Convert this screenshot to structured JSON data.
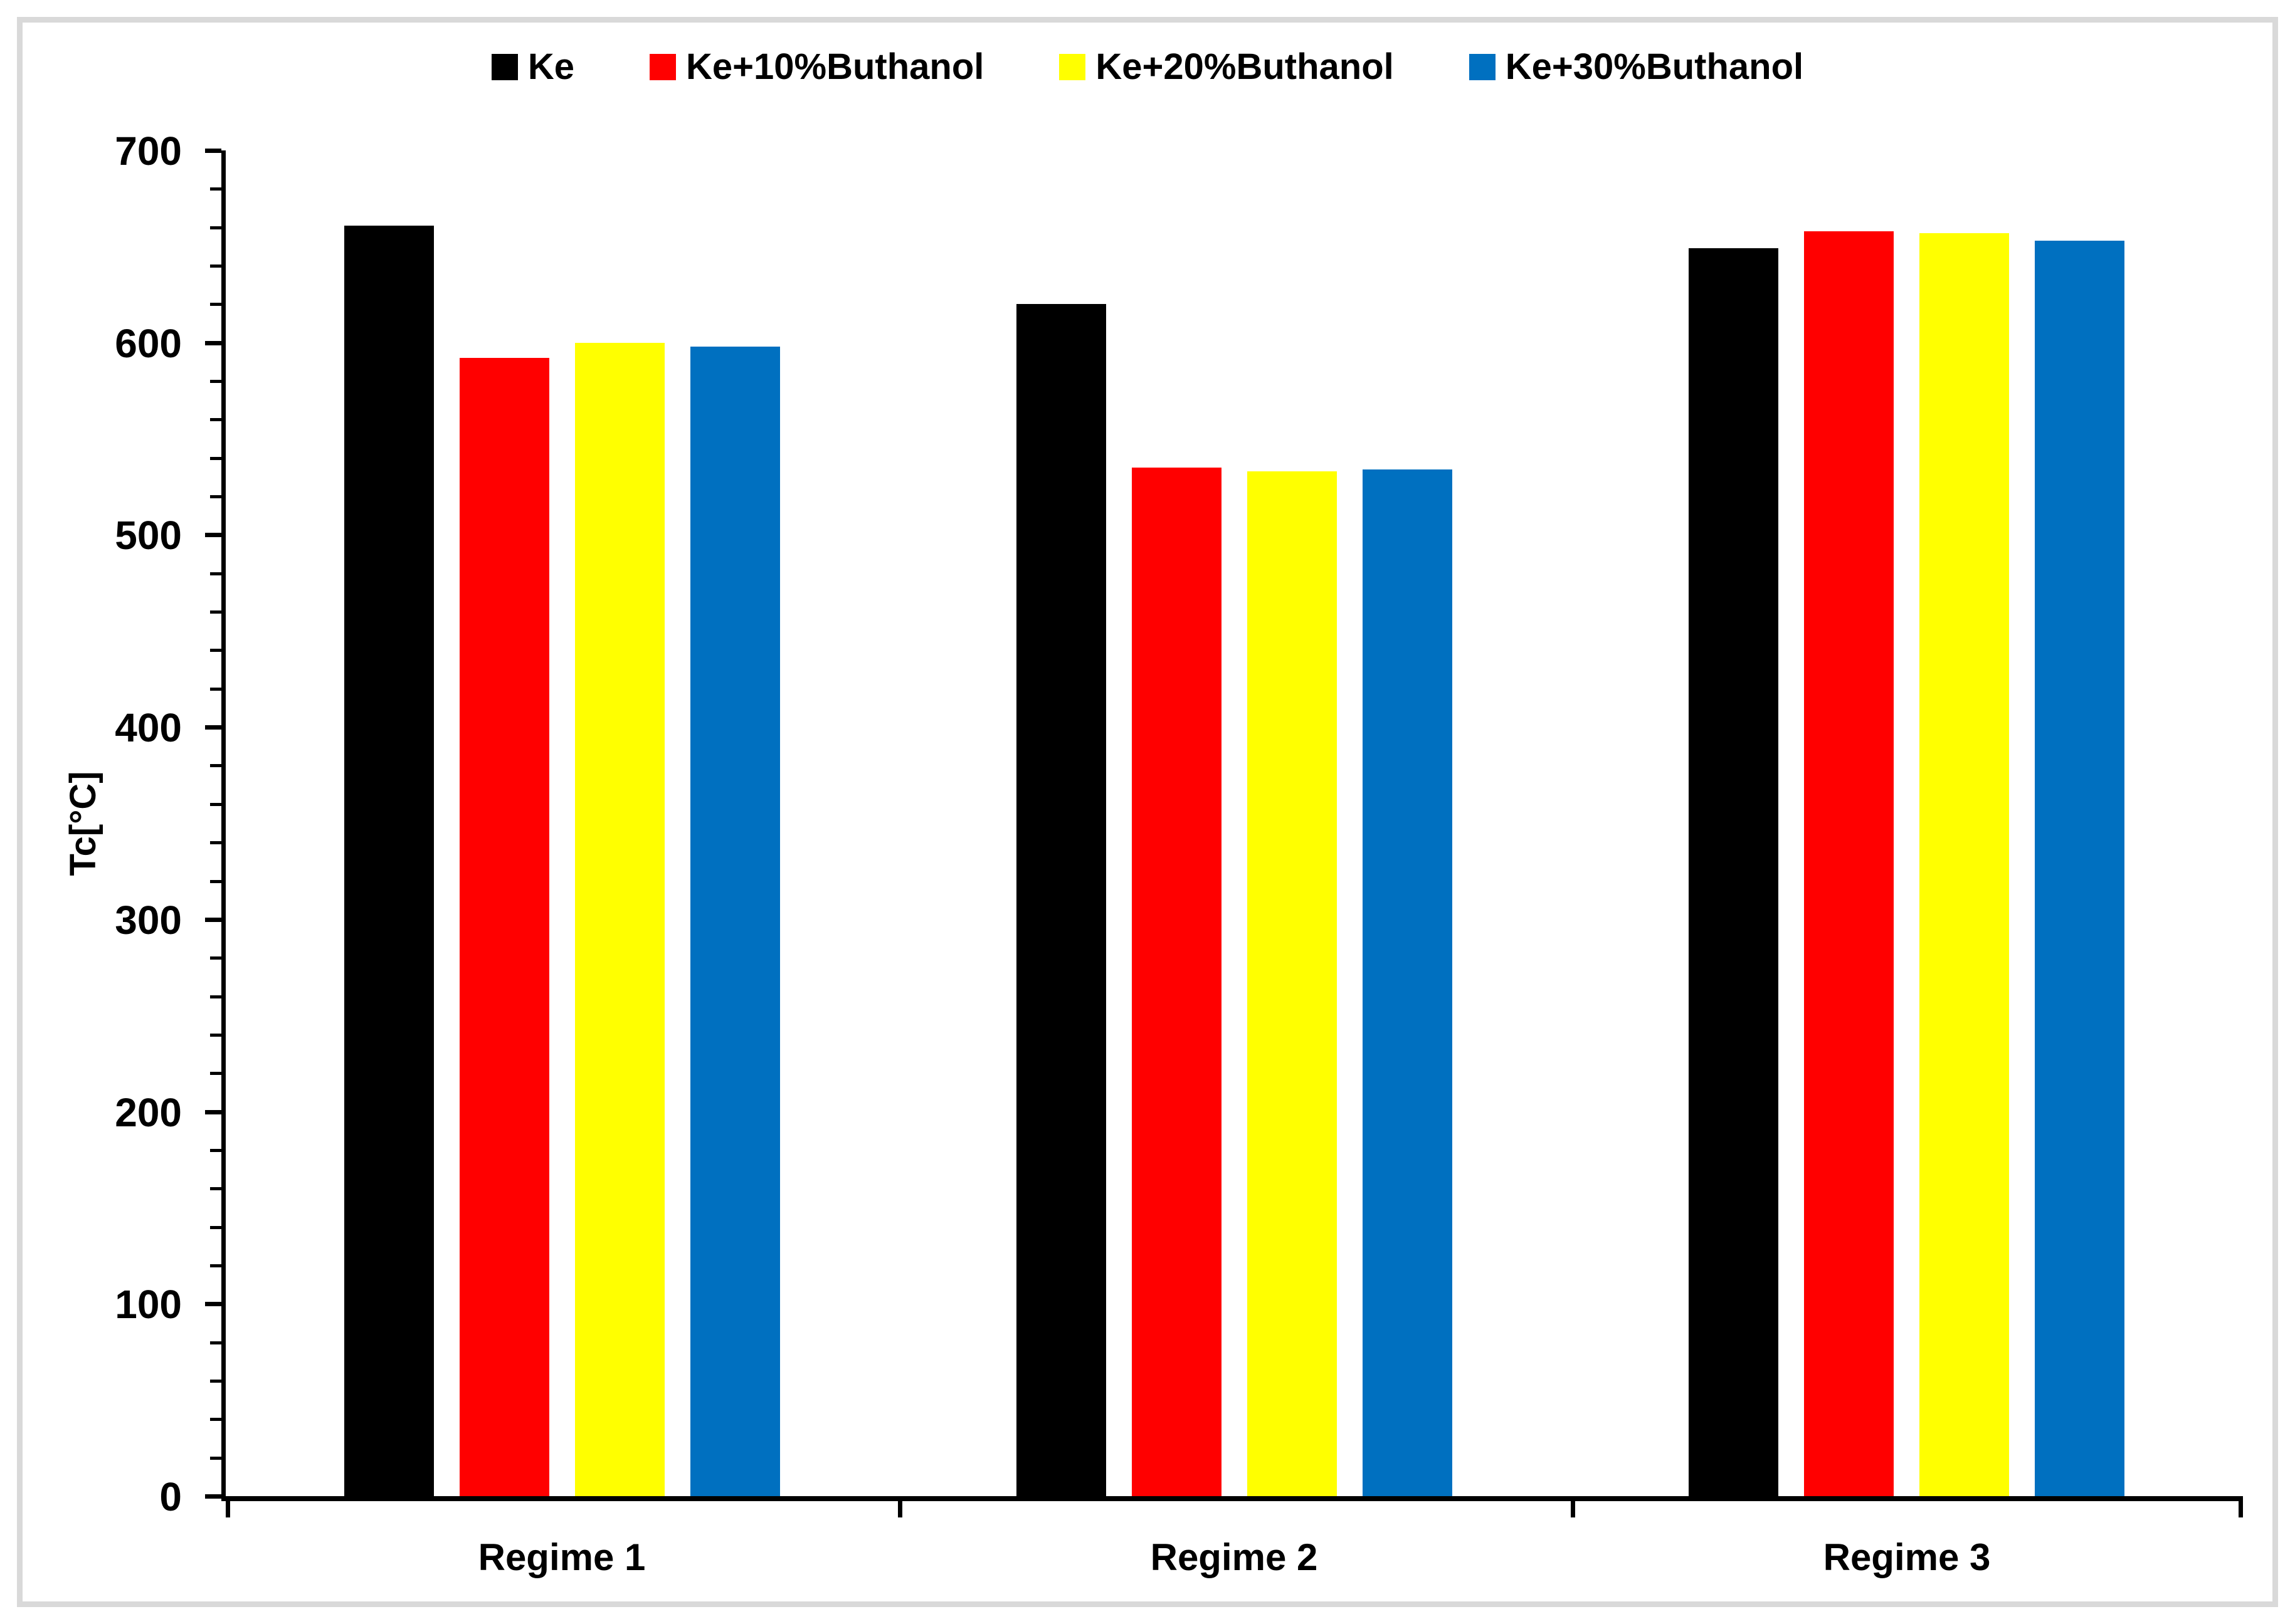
{
  "chart_data": {
    "type": "bar",
    "title": "",
    "categories": [
      "Regime 1",
      "Regime 2",
      "Regime 3"
    ],
    "series": [
      {
        "name": "Ke",
        "color": "#000000",
        "values": [
          661,
          620,
          649
        ]
      },
      {
        "name": "Ke+10%Buthanol",
        "color": "#FF0000",
        "values": [
          592,
          535,
          658
        ]
      },
      {
        "name": "Ke+20%Buthanol",
        "color": "#FFFF00",
        "values": [
          600,
          533,
          657
        ]
      },
      {
        "name": "Ke+30%Buthanol",
        "color": "#0070C0",
        "values": [
          598,
          534,
          653
        ]
      }
    ],
    "xlabel": "",
    "ylabel": "Tc[°C]",
    "ylim": [
      0,
      700
    ],
    "ytick_major": 100,
    "ytick_minor": 20,
    "ytick_labels": [
      "0",
      "100",
      "200",
      "300",
      "400",
      "500",
      "600",
      "700"
    ],
    "legend_position": "top-center",
    "grid": false
  },
  "colors": {
    "background": "#FFFFFF",
    "frame_border": "#D9D9D9",
    "axis": "#000000",
    "text": "#000000"
  }
}
